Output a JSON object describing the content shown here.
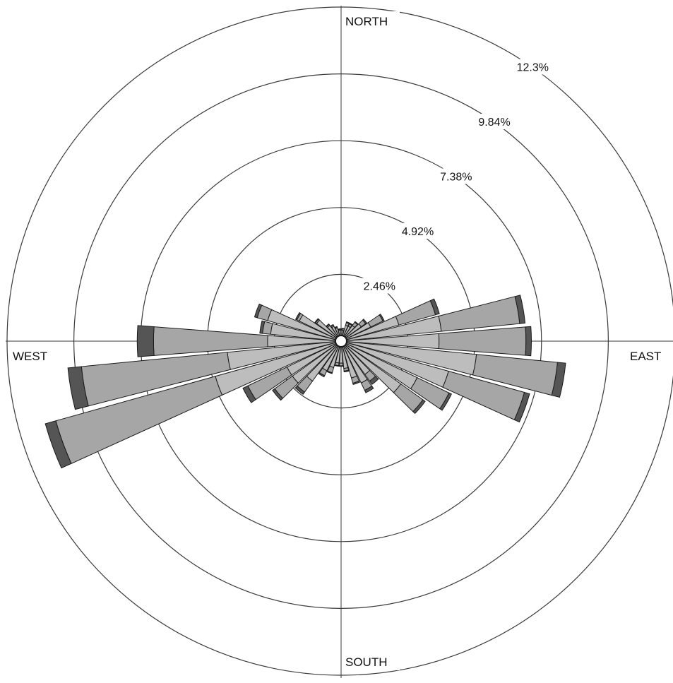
{
  "chart_data": {
    "type": "wind-rose",
    "title": "",
    "directions": {
      "north": "NORTH",
      "east": "EAST",
      "south": "SOUTH",
      "west": "WEST"
    },
    "ring_labels": [
      "2.46%",
      "4.92%",
      "7.38%",
      "9.84%",
      "12.3%"
    ],
    "ring_values": [
      2.46,
      4.92,
      7.38,
      9.84,
      12.3
    ],
    "max_value": 12.3,
    "sector_count": 36,
    "sector_width_deg": 10,
    "series": [
      {
        "color": "#bdbdbd"
      },
      {
        "color": "#a6a6a6"
      },
      {
        "color": "#555555"
      }
    ],
    "sectors": [
      {
        "direction_deg": 10,
        "values": [
          0.2,
          0.05,
          0.02
        ]
      },
      {
        "direction_deg": 20,
        "values": [
          0.4,
          0.1,
          0.03
        ]
      },
      {
        "direction_deg": 30,
        "values": [
          0.4,
          0.1,
          0.03
        ]
      },
      {
        "direction_deg": 40,
        "values": [
          0.5,
          0.15,
          0.03
        ]
      },
      {
        "direction_deg": 50,
        "values": [
          0.7,
          0.2,
          0.05
        ]
      },
      {
        "direction_deg": 60,
        "values": [
          1.0,
          0.5,
          0.05
        ]
      },
      {
        "direction_deg": 70,
        "values": [
          2.0,
          1.4,
          0.15
        ]
      },
      {
        "direction_deg": 80,
        "values": [
          3.5,
          2.9,
          0.2
        ]
      },
      {
        "direction_deg": 90,
        "values": [
          3.4,
          3.2,
          0.2
        ]
      },
      {
        "direction_deg": 100,
        "values": [
          4.8,
          3.0,
          0.3
        ]
      },
      {
        "direction_deg": 110,
        "values": [
          3.9,
          2.9,
          0.2
        ]
      },
      {
        "direction_deg": 120,
        "values": [
          2.9,
          1.3,
          0.1
        ]
      },
      {
        "direction_deg": 130,
        "values": [
          2.5,
          1.0,
          0.1
        ]
      },
      {
        "direction_deg": 140,
        "values": [
          1.3,
          0.3,
          0.15
        ]
      },
      {
        "direction_deg": 150,
        "values": [
          1.5,
          0.3,
          0.1
        ]
      },
      {
        "direction_deg": 160,
        "values": [
          1.2,
          0.2,
          0.05
        ]
      },
      {
        "direction_deg": 170,
        "values": [
          0.8,
          0.1,
          0.03
        ]
      },
      {
        "direction_deg": 180,
        "values": [
          0.6,
          0.1,
          0.02
        ]
      },
      {
        "direction_deg": 190,
        "values": [
          0.6,
          0.1,
          0.02
        ]
      },
      {
        "direction_deg": 200,
        "values": [
          0.8,
          0.2,
          0.03
        ]
      },
      {
        "direction_deg": 210,
        "values": [
          1.0,
          0.2,
          0.05
        ]
      },
      {
        "direction_deg": 220,
        "values": [
          1.6,
          0.5,
          0.1
        ]
      },
      {
        "direction_deg": 230,
        "values": [
          2.0,
          0.8,
          0.1
        ]
      },
      {
        "direction_deg": 240,
        "values": [
          2.0,
          1.6,
          0.2
        ]
      },
      {
        "direction_deg": 250,
        "values": [
          4.6,
          6.1,
          0.4
        ]
      },
      {
        "direction_deg": 260,
        "values": [
          4.0,
          5.4,
          0.5
        ]
      },
      {
        "direction_deg": 270,
        "values": [
          2.5,
          4.2,
          0.6
        ]
      },
      {
        "direction_deg": 280,
        "values": [
          2.4,
          0.3,
          0.1
        ]
      },
      {
        "direction_deg": 290,
        "values": [
          2.6,
          0.4,
          0.1
        ]
      },
      {
        "direction_deg": 300,
        "values": [
          1.5,
          0.1,
          0.05
        ]
      },
      {
        "direction_deg": 310,
        "values": [
          0.9,
          0.05,
          0.03
        ]
      },
      {
        "direction_deg": 320,
        "values": [
          0.5,
          0.05,
          0.02
        ]
      },
      {
        "direction_deg": 330,
        "values": [
          0.4,
          0.05,
          0.02
        ]
      },
      {
        "direction_deg": 340,
        "values": [
          0.3,
          0.03,
          0.02
        ]
      },
      {
        "direction_deg": 350,
        "values": [
          0.2,
          0.03,
          0.02
        ]
      },
      {
        "direction_deg": 360,
        "values": [
          0.2,
          0.03,
          0.02
        ]
      }
    ],
    "grid": true,
    "legend": "none"
  }
}
